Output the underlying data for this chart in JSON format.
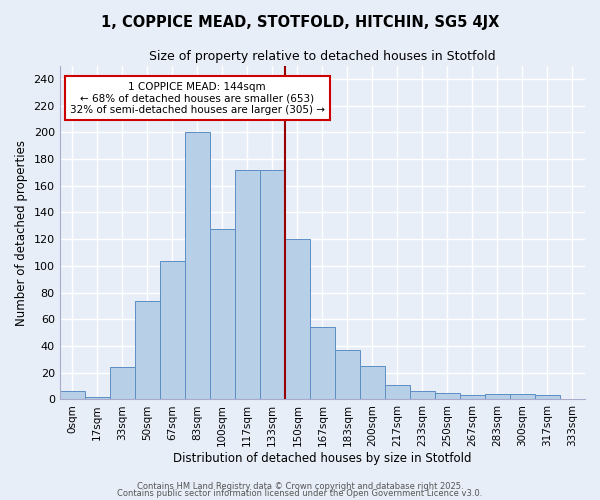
{
  "title": "1, COPPICE MEAD, STOTFOLD, HITCHIN, SG5 4JX",
  "subtitle": "Size of property relative to detached houses in Stotfold",
  "xlabel": "Distribution of detached houses by size in Stotfold",
  "ylabel": "Number of detached properties",
  "bar_color": "#b8cfe8",
  "bar_edge_color": "#5b8ec4",
  "background_color": "#e8eef8",
  "grid_color": "#ffffff",
  "categories": [
    "0sqm",
    "17sqm",
    "33sqm",
    "50sqm",
    "67sqm",
    "83sqm",
    "100sqm",
    "117sqm",
    "133sqm",
    "150sqm",
    "167sqm",
    "183sqm",
    "200sqm",
    "217sqm",
    "233sqm",
    "250sqm",
    "267sqm",
    "283sqm",
    "300sqm",
    "317sqm",
    "333sqm"
  ],
  "values": [
    6,
    2,
    24,
    74,
    104,
    200,
    128,
    172,
    172,
    120,
    54,
    37,
    25,
    11,
    6,
    5,
    3,
    4,
    4,
    3,
    0
  ],
  "ylim": [
    0,
    250
  ],
  "yticks": [
    0,
    20,
    40,
    60,
    80,
    100,
    120,
    140,
    160,
    180,
    200,
    220,
    240
  ],
  "annotation_text": "1 COPPICE MEAD: 144sqm\n← 68% of detached houses are smaller (653)\n32% of semi-detached houses are larger (305) →",
  "annotation_box_color": "#ffffff",
  "annotation_box_edge": "#cc0000",
  "line_color": "#990000",
  "footer1": "Contains HM Land Registry data © Crown copyright and database right 2025.",
  "footer2": "Contains public sector information licensed under the Open Government Licence v3.0."
}
